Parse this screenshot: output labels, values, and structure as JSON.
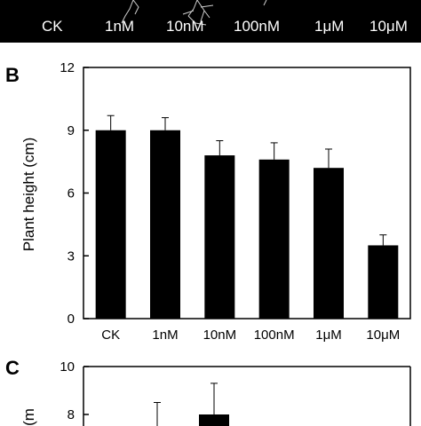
{
  "photo_strip": {
    "labels": [
      "CK",
      "1nM",
      "10nM",
      "100nM",
      "1μM",
      "10μM"
    ]
  },
  "panels": {
    "b_letter": "B",
    "c_letter": "C"
  },
  "chart_data": [
    {
      "type": "bar",
      "panel": "B",
      "categories": [
        "CK",
        "1nM",
        "10nM",
        "100nM",
        "1μM",
        "10μM"
      ],
      "values": [
        9.0,
        9.0,
        7.8,
        7.6,
        7.2,
        3.5
      ],
      "errors": [
        0.7,
        0.6,
        0.7,
        0.8,
        0.9,
        0.5
      ],
      "ylabel": "Plant height (cm)",
      "xlabel": "",
      "ylim": [
        0,
        12
      ],
      "yticks": [
        0,
        3,
        6,
        9,
        12
      ],
      "bar_color": "#000000"
    },
    {
      "type": "bar",
      "panel": "C",
      "categories": [],
      "visible_partial_values": [
        8.0
      ],
      "visible_error_tops": [
        8.5,
        9.3
      ],
      "ylabel": "(m",
      "yticks": [
        8,
        10
      ],
      "bar_color": "#000000"
    }
  ]
}
